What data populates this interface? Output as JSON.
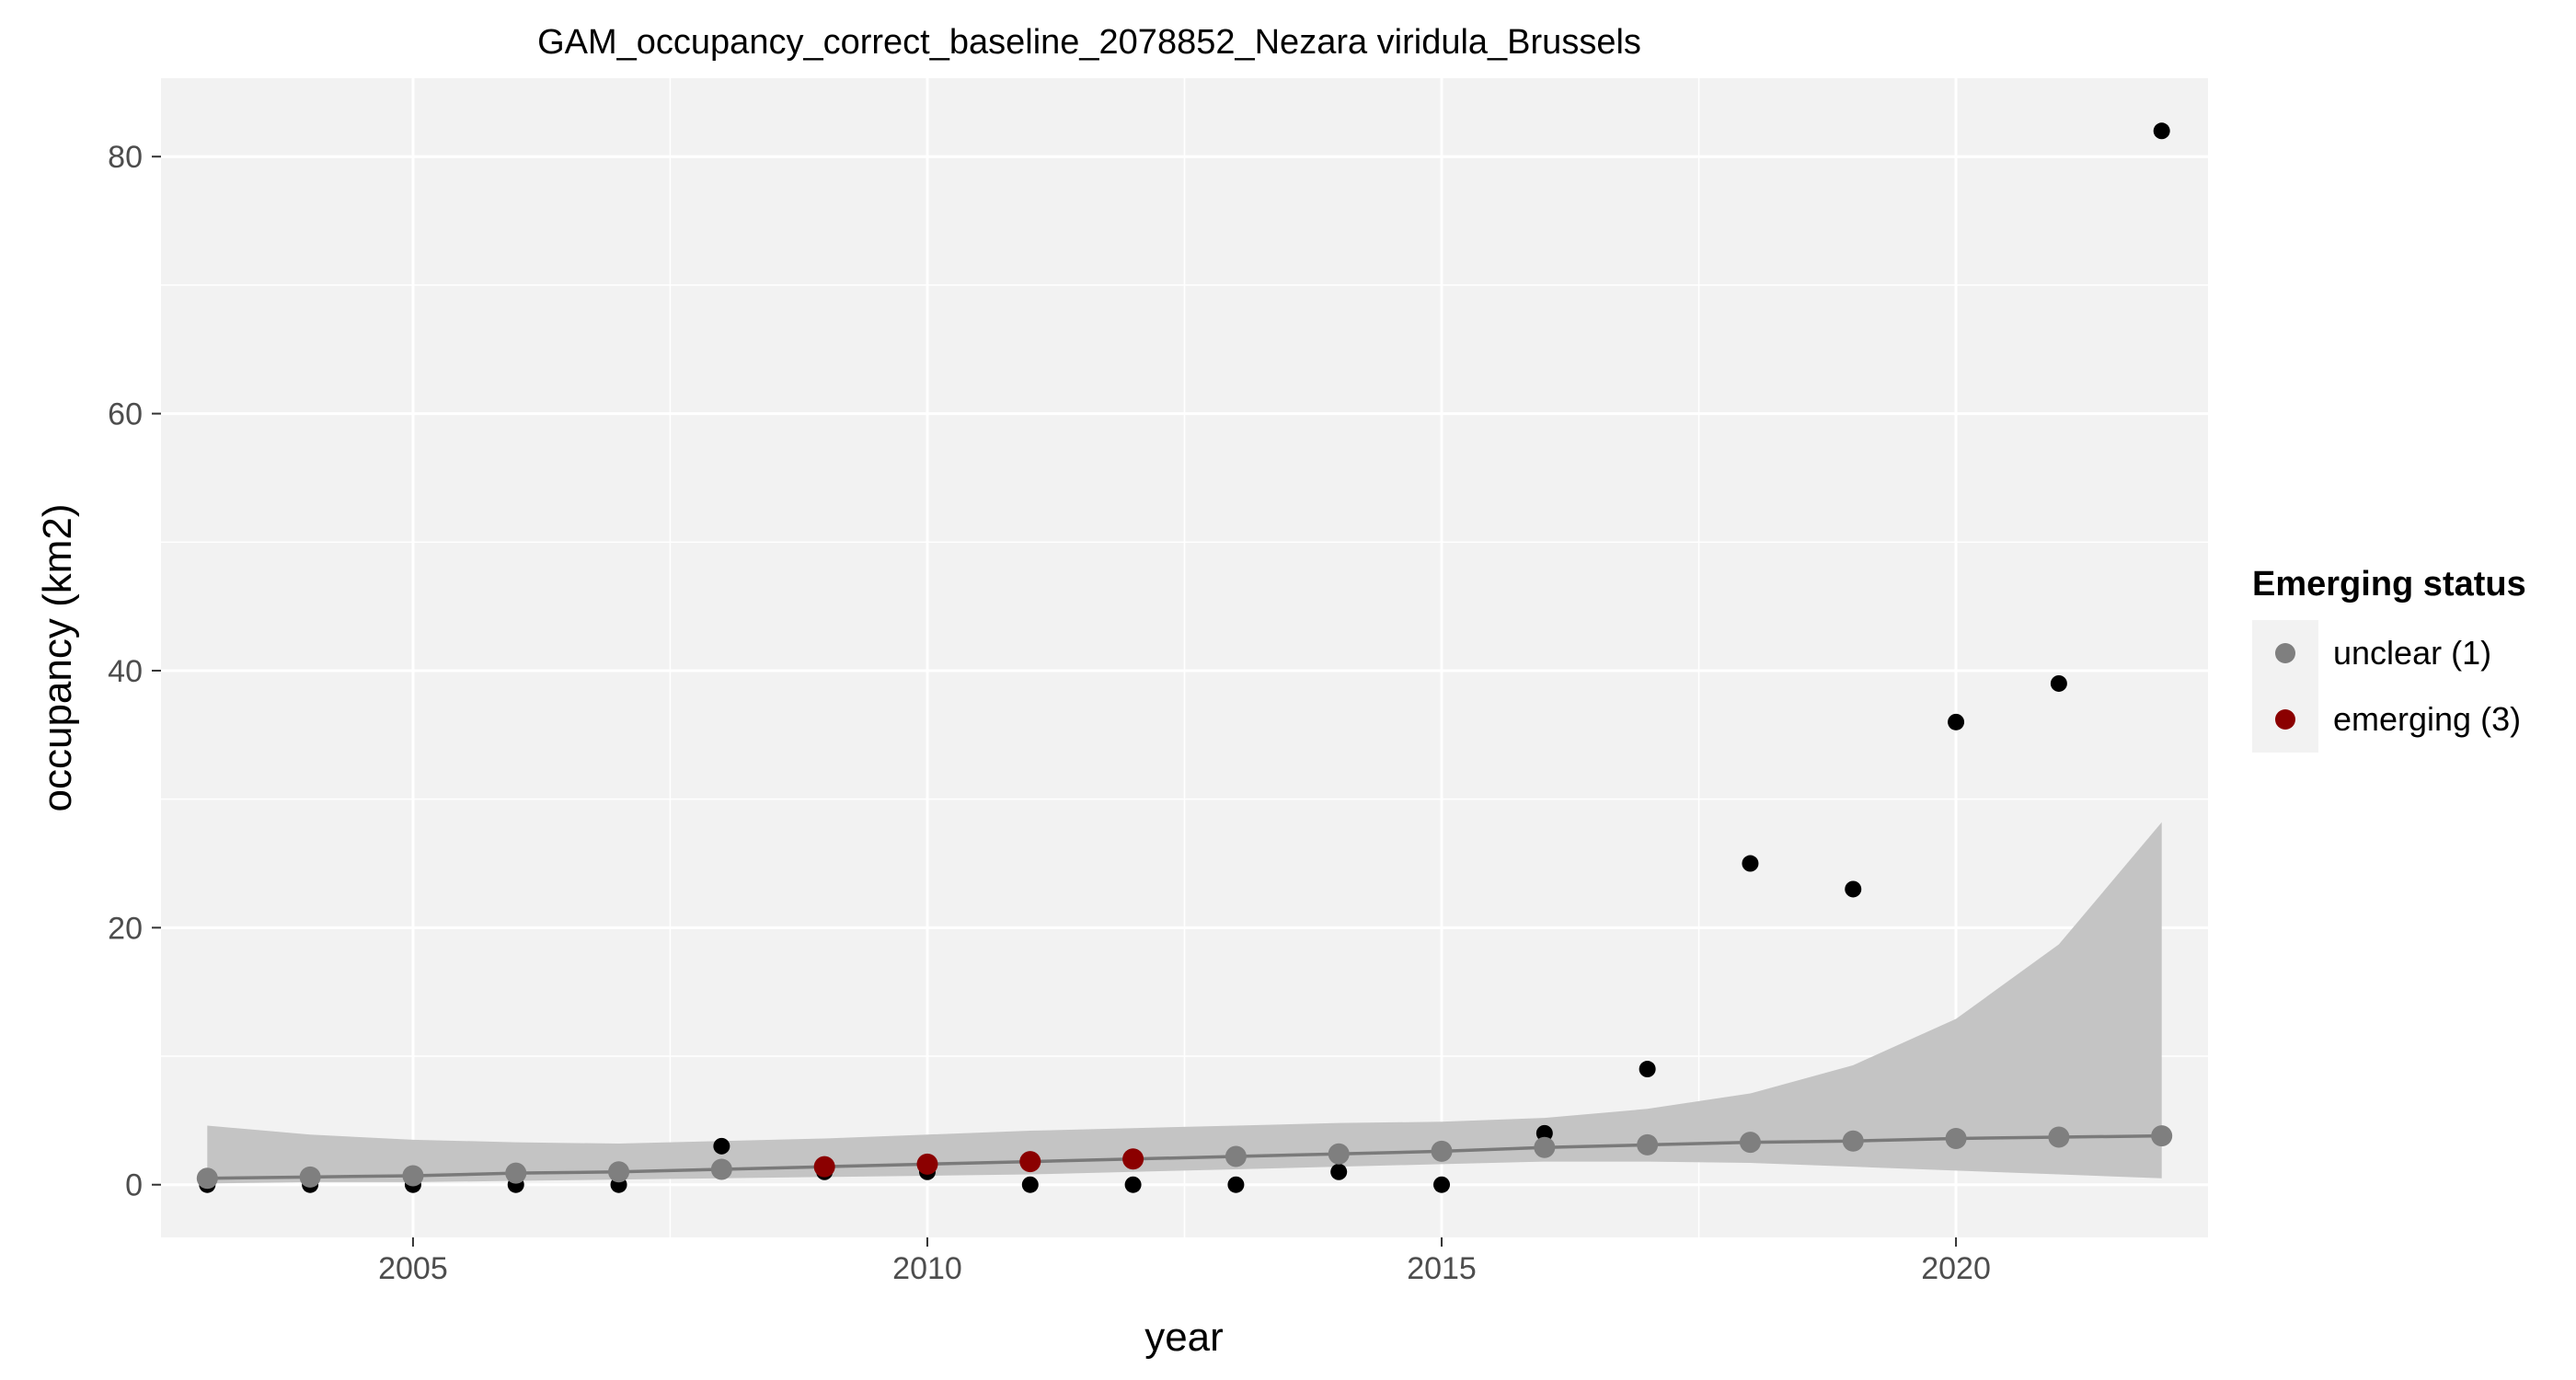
{
  "chart_data": {
    "type": "scatter",
    "title": "GAM_occupancy_correct_baseline_2078852_Nezara viridula_Brussels",
    "xlabel": "year",
    "ylabel": "occupancy (km2)",
    "xlim": [
      2002.55,
      2022.45
    ],
    "ylim": [
      -4.1,
      86.1
    ],
    "x_ticks": [
      2005,
      2010,
      2015,
      2020
    ],
    "y_ticks": [
      0,
      20,
      40,
      60,
      80
    ],
    "grid": true,
    "legend_position": "right",
    "legend": {
      "title": "Emerging status",
      "entries": [
        {
          "label": "unclear (1)",
          "color": "#7f7f7f"
        },
        {
          "label": "emerging (3)",
          "color": "#8b0000"
        }
      ]
    },
    "colors": {
      "panel": "#f2f2f2",
      "grid": "#ffffff",
      "ribbon": "#c4c4c4",
      "fit_line": "#7a7a7a",
      "observed": "#000000",
      "unclear": "#7f7f7f",
      "emerging": "#8b0000"
    },
    "observed": [
      {
        "x": 2003,
        "y": 0
      },
      {
        "x": 2004,
        "y": 0
      },
      {
        "x": 2005,
        "y": 0
      },
      {
        "x": 2006,
        "y": 0
      },
      {
        "x": 2007,
        "y": 0
      },
      {
        "x": 2008,
        "y": 3
      },
      {
        "x": 2009,
        "y": 1
      },
      {
        "x": 2010,
        "y": 1
      },
      {
        "x": 2011,
        "y": 0
      },
      {
        "x": 2012,
        "y": 0
      },
      {
        "x": 2013,
        "y": 0
      },
      {
        "x": 2014,
        "y": 1
      },
      {
        "x": 2015,
        "y": 0
      },
      {
        "x": 2016,
        "y": 4
      },
      {
        "x": 2017,
        "y": 9
      },
      {
        "x": 2018,
        "y": 25
      },
      {
        "x": 2019,
        "y": 23
      },
      {
        "x": 2020,
        "y": 36
      },
      {
        "x": 2021,
        "y": 39
      },
      {
        "x": 2022,
        "y": 82
      }
    ],
    "fitted": [
      {
        "x": 2003,
        "y": 0.5,
        "lower": 0.1,
        "upper": 4.6,
        "status": "unclear (1)"
      },
      {
        "x": 2004,
        "y": 0.6,
        "lower": 0.2,
        "upper": 3.9,
        "status": "unclear (1)"
      },
      {
        "x": 2005,
        "y": 0.7,
        "lower": 0.2,
        "upper": 3.5,
        "status": "unclear (1)"
      },
      {
        "x": 2006,
        "y": 0.9,
        "lower": 0.3,
        "upper": 3.3,
        "status": "unclear (1)"
      },
      {
        "x": 2007,
        "y": 1.0,
        "lower": 0.4,
        "upper": 3.2,
        "status": "unclear (1)"
      },
      {
        "x": 2008,
        "y": 1.2,
        "lower": 0.5,
        "upper": 3.4,
        "status": "unclear (1)"
      },
      {
        "x": 2009,
        "y": 1.4,
        "lower": 0.6,
        "upper": 3.6,
        "status": "emerging (3)"
      },
      {
        "x": 2010,
        "y": 1.6,
        "lower": 0.7,
        "upper": 3.9,
        "status": "emerging (3)"
      },
      {
        "x": 2011,
        "y": 1.8,
        "lower": 0.8,
        "upper": 4.2,
        "status": "emerging (3)"
      },
      {
        "x": 2012,
        "y": 2.0,
        "lower": 1.0,
        "upper": 4.4,
        "status": "emerging (3)"
      },
      {
        "x": 2013,
        "y": 2.2,
        "lower": 1.2,
        "upper": 4.6,
        "status": "unclear (1)"
      },
      {
        "x": 2014,
        "y": 2.4,
        "lower": 1.4,
        "upper": 4.8,
        "status": "unclear (1)"
      },
      {
        "x": 2015,
        "y": 2.6,
        "lower": 1.6,
        "upper": 4.9,
        "status": "unclear (1)"
      },
      {
        "x": 2016,
        "y": 2.9,
        "lower": 1.8,
        "upper": 5.2,
        "status": "unclear (1)"
      },
      {
        "x": 2017,
        "y": 3.1,
        "lower": 1.8,
        "upper": 5.9,
        "status": "unclear (1)"
      },
      {
        "x": 2018,
        "y": 3.3,
        "lower": 1.7,
        "upper": 7.1,
        "status": "unclear (1)"
      },
      {
        "x": 2019,
        "y": 3.4,
        "lower": 1.4,
        "upper": 9.3,
        "status": "unclear (1)"
      },
      {
        "x": 2020,
        "y": 3.6,
        "lower": 1.1,
        "upper": 12.9,
        "status": "unclear (1)"
      },
      {
        "x": 2021,
        "y": 3.7,
        "lower": 0.8,
        "upper": 18.7,
        "status": "unclear (1)"
      },
      {
        "x": 2022,
        "y": 3.8,
        "lower": 0.5,
        "upper": 28.2,
        "status": "unclear (1)"
      }
    ]
  }
}
